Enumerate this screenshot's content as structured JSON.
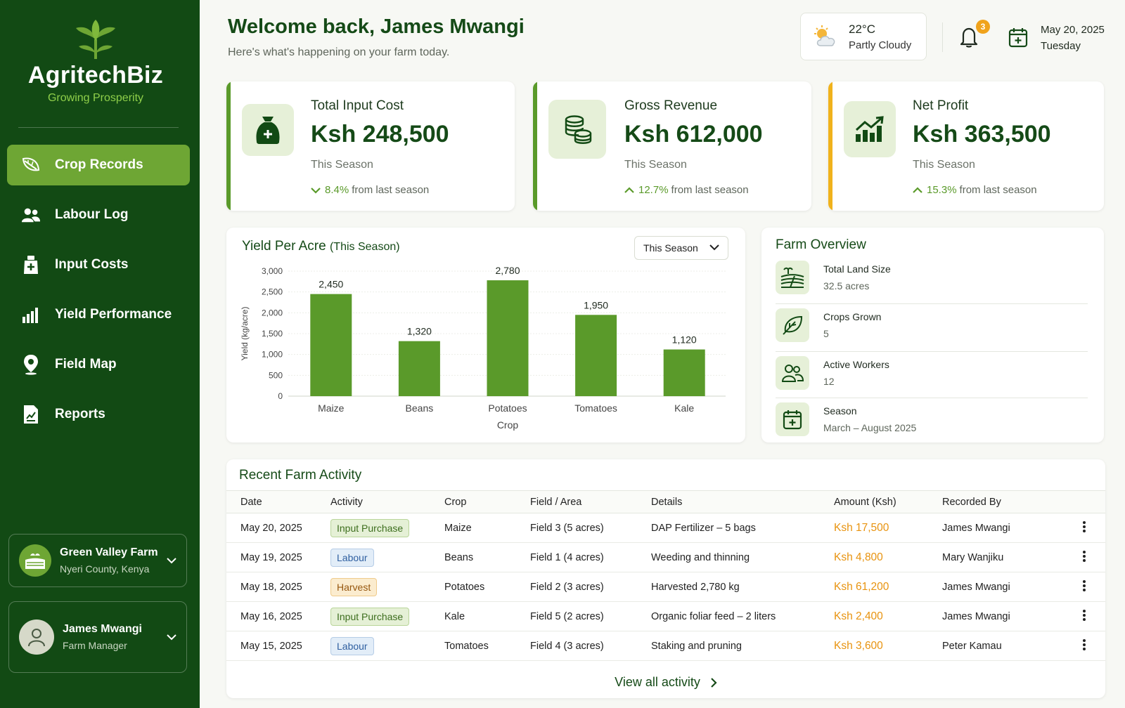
{
  "brand": {
    "name": "AgritechBiz",
    "tagline": "Growing Prosperity"
  },
  "nav": [
    {
      "label": "Crop Records",
      "icon": "leaf-icon",
      "active": true
    },
    {
      "label": "Labour Log",
      "icon": "workers-icon",
      "active": false
    },
    {
      "label": "Input Costs",
      "icon": "input-bag-icon",
      "active": false
    },
    {
      "label": "Yield Performance",
      "icon": "bar-chart-icon",
      "active": false
    },
    {
      "label": "Field Map",
      "icon": "map-pin-icon",
      "active": false
    },
    {
      "label": "Reports",
      "icon": "report-icon",
      "active": false
    }
  ],
  "farm": {
    "name": "Green Valley Farm",
    "location": "Nyeri County, Kenya"
  },
  "user": {
    "name": "James Mwangi",
    "role": "Farm Manager"
  },
  "header": {
    "welcome": "Welcome back, James Mwangi",
    "subtitle": "Here's what's happening on your farm today.",
    "weather": {
      "temp": "22°C",
      "condition": "Partly Cloudy"
    },
    "notifications": "3",
    "date": "May 20, 2025",
    "day": "Tuesday"
  },
  "stats": [
    {
      "title": "Total Input Cost",
      "value": "Ksh 248,500",
      "period": "This Season",
      "change": "8.4%",
      "change_text": "from last season",
      "direction": "down",
      "accent": "#5a9a2a",
      "icon": "money-bag-icon"
    },
    {
      "title": "Gross Revenue",
      "value": "Ksh 612,000",
      "period": "This Season",
      "change": "12.7%",
      "change_text": "from last season",
      "direction": "up",
      "accent": "#5a9a2a",
      "icon": "coins-icon"
    },
    {
      "title": "Net Profit",
      "value": "Ksh 363,500",
      "period": "This Season",
      "change": "15.3%",
      "change_text": "from last season",
      "direction": "up",
      "accent": "#f0b21c",
      "icon": "trend-up-icon"
    }
  ],
  "chart": {
    "title": "Yield Per Acre",
    "title_suffix": "(This Season)",
    "selector": "This Season"
  },
  "chart_data": {
    "type": "bar",
    "categories": [
      "Maize",
      "Beans",
      "Potatoes",
      "Tomatoes",
      "Kale"
    ],
    "values": [
      2450,
      1320,
      2780,
      1950,
      1120
    ],
    "value_labels": [
      "2,450",
      "1,320",
      "2,780",
      "1,950",
      "1,120"
    ],
    "xlabel": "Crop",
    "ylabel": "Yield (kg/acre)",
    "ylim": [
      0,
      3000
    ],
    "yticks": [
      "0",
      "500",
      "1,000",
      "1,500",
      "2,000",
      "2,500",
      "3,000"
    ],
    "bar_color": "#5a9a2a",
    "grid": true
  },
  "overview": {
    "title": "Farm Overview",
    "items": [
      {
        "label": "Total Land Size",
        "value": "32.5 acres",
        "icon": "land-icon"
      },
      {
        "label": "Crops Grown",
        "value": "5",
        "icon": "leaf-icon"
      },
      {
        "label": "Active Workers",
        "value": "12",
        "icon": "workers-icon"
      },
      {
        "label": "Season",
        "value": "March – August 2025",
        "icon": "calendar-icon"
      }
    ]
  },
  "activity": {
    "title": "Recent Farm Activity",
    "columns": [
      "Date",
      "Activity",
      "Crop",
      "Field / Area",
      "Details",
      "Amount (Ksh)",
      "Recorded By"
    ],
    "rows": [
      {
        "date": "May 20, 2025",
        "activity": "Input Purchase",
        "type": "input",
        "crop": "Maize",
        "field": "Field 3 (5 acres)",
        "details": "DAP Fertilizer – 5 bags",
        "amount": "Ksh 17,500",
        "by": "James Mwangi"
      },
      {
        "date": "May 19, 2025",
        "activity": "Labour",
        "type": "labour",
        "crop": "Beans",
        "field": "Field 1 (4 acres)",
        "details": "Weeding and thinning",
        "amount": "Ksh 4,800",
        "by": "Mary Wanjiku"
      },
      {
        "date": "May 18, 2025",
        "activity": "Harvest",
        "type": "harvest",
        "crop": "Potatoes",
        "field": "Field 2 (3 acres)",
        "details": "Harvested 2,780 kg",
        "amount": "Ksh 61,200",
        "by": "James Mwangi"
      },
      {
        "date": "May 16, 2025",
        "activity": "Input Purchase",
        "type": "input",
        "crop": "Kale",
        "field": "Field 5 (2 acres)",
        "details": "Organic foliar feed – 2 liters",
        "amount": "Ksh 2,400",
        "by": "James Mwangi"
      },
      {
        "date": "May 15, 2025",
        "activity": "Labour",
        "type": "labour",
        "crop": "Tomatoes",
        "field": "Field 4 (3 acres)",
        "details": "Staking and pruning",
        "amount": "Ksh 3,600",
        "by": "Peter Kamau"
      }
    ],
    "view_all": "View all activity"
  }
}
